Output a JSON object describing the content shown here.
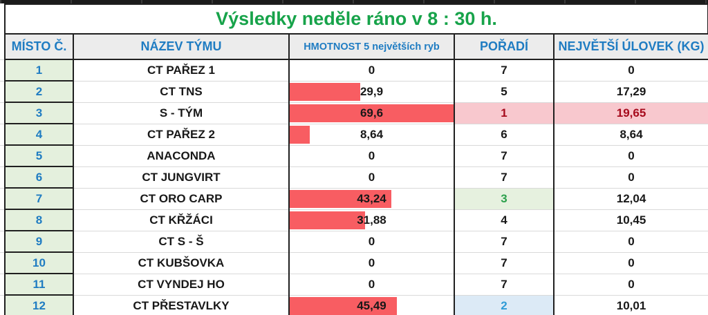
{
  "title": "Výsledky neděle ráno v 8 : 30 h.",
  "columns": [
    "MÍSTO Č.",
    "NÁZEV TÝMU",
    "HMOTNOST 5 největších ryb",
    "POŘADÍ",
    "NEJVĚTŠÍ ÚLOVEK (KG)"
  ],
  "databar": {
    "max": 69.6,
    "scale_note": "bar width = weight / max"
  },
  "chart_data": {
    "type": "table",
    "title": "Výsledky neděle ráno v 8 : 30 h.",
    "categories": [
      "CT PAŘEZ 1",
      "CT TNS",
      "S - TÝM",
      "CT PAŘEZ 2",
      "ANACONDA",
      "CT JUNGVIRT",
      "CT ORO CARP",
      "CT KŘŽÁCI",
      "CT S - Š",
      "CT KUBŠOVKA",
      "CT VYNDEJ HO",
      "CT PŘESTAVLKY"
    ],
    "series": [
      {
        "name": "HMOTNOST 5 největších ryb",
        "values": [
          0,
          29.9,
          69.6,
          8.64,
          0,
          0,
          43.24,
          31.88,
          0,
          0,
          0,
          45.49
        ]
      },
      {
        "name": "POŘADÍ",
        "values": [
          7,
          5,
          1,
          6,
          7,
          7,
          3,
          4,
          7,
          7,
          7,
          2
        ]
      },
      {
        "name": "NEJVĚTŠÍ ÚLOVEK (KG)",
        "values": [
          0,
          17.29,
          19.65,
          8.64,
          0,
          0,
          12.04,
          10.45,
          0,
          0,
          0,
          10.01
        ]
      }
    ]
  },
  "rows": [
    {
      "place": "1",
      "team": "CT PAŘEZ 1",
      "weight": 0,
      "weight_display": "0",
      "rank": "7",
      "biggest": "0",
      "style": "none"
    },
    {
      "place": "2",
      "team": "CT TNS",
      "weight": 29.9,
      "weight_display": "29,9",
      "rank": "5",
      "biggest": "17,29",
      "style": "none"
    },
    {
      "place": "3",
      "team": "S - TÝM",
      "weight": 69.6,
      "weight_display": "69,6",
      "rank": "1",
      "biggest": "19,65",
      "style": "red"
    },
    {
      "place": "4",
      "team": "CT PAŘEZ 2",
      "weight": 8.64,
      "weight_display": "8,64",
      "rank": "6",
      "biggest": "8,64",
      "style": "none"
    },
    {
      "place": "5",
      "team": "ANACONDA",
      "weight": 0,
      "weight_display": "0",
      "rank": "7",
      "biggest": "0",
      "style": "none"
    },
    {
      "place": "6",
      "team": "CT JUNGVIRT",
      "weight": 0,
      "weight_display": "0",
      "rank": "7",
      "biggest": "0",
      "style": "none"
    },
    {
      "place": "7",
      "team": "CT ORO CARP",
      "weight": 43.24,
      "weight_display": "43,24",
      "rank": "3",
      "biggest": "12,04",
      "style": "green"
    },
    {
      "place": "8",
      "team": "CT KŘŽÁCI",
      "weight": 31.88,
      "weight_display": "31,88",
      "rank": "4",
      "biggest": "10,45",
      "style": "none"
    },
    {
      "place": "9",
      "team": "CT S - Š",
      "weight": 0,
      "weight_display": "0",
      "rank": "7",
      "biggest": "0",
      "style": "none"
    },
    {
      "place": "10",
      "team": "CT KUBŠOVKA",
      "weight": 0,
      "weight_display": "0",
      "rank": "7",
      "biggest": "0",
      "style": "none"
    },
    {
      "place": "11",
      "team": "CT VYNDEJ HO",
      "weight": 0,
      "weight_display": "0",
      "rank": "7",
      "biggest": "0",
      "style": "none"
    },
    {
      "place": "12",
      "team": "CT PŘESTAVLKY",
      "weight": 45.49,
      "weight_display": "45,49",
      "rank": "2",
      "biggest": "10,01",
      "style": "blue"
    }
  ],
  "colors": {
    "title-green": "#17a34a",
    "header-blue": "#1f7cc2",
    "bar-red": "#f85d62",
    "pink-bg": "#f8c8ce",
    "dark-red": "#a60a1c",
    "green-bg": "#e6f1df",
    "green-text": "#2ca04c",
    "blue-bg": "#dceaf6",
    "blue-text": "#2e9bd6",
    "place-bg": "#e4f0dd"
  }
}
